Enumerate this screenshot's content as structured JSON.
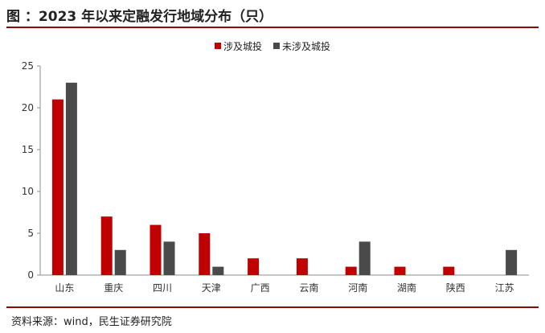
{
  "title": "图  ：2023 年以来定融发行地域分布（只）",
  "source": "资料来源：wind，民生证券研究院",
  "colors": {
    "accent": "#8b0a0a",
    "series_1": "#c00000",
    "series_2": "#4a4a4a"
  },
  "chart_data": {
    "type": "bar",
    "title": "2023 年以来定融发行地域分布（只）",
    "xlabel": "",
    "ylabel": "",
    "ylim": [
      0,
      25
    ],
    "yticks": [
      0,
      5,
      10,
      15,
      20,
      25
    ],
    "grid": false,
    "legend_position": "top-center",
    "categories": [
      "山东",
      "重庆",
      "四川",
      "天津",
      "广西",
      "云南",
      "河南",
      "湖南",
      "陕西",
      "江苏"
    ],
    "series": [
      {
        "name": "涉及城投",
        "color": "#c00000",
        "values": [
          21,
          7,
          6,
          5,
          2,
          2,
          1,
          1,
          1,
          0
        ]
      },
      {
        "name": "未涉及城投",
        "color": "#4a4a4a",
        "values": [
          23,
          3,
          4,
          1,
          0,
          0,
          4,
          0,
          0,
          3
        ]
      }
    ]
  }
}
